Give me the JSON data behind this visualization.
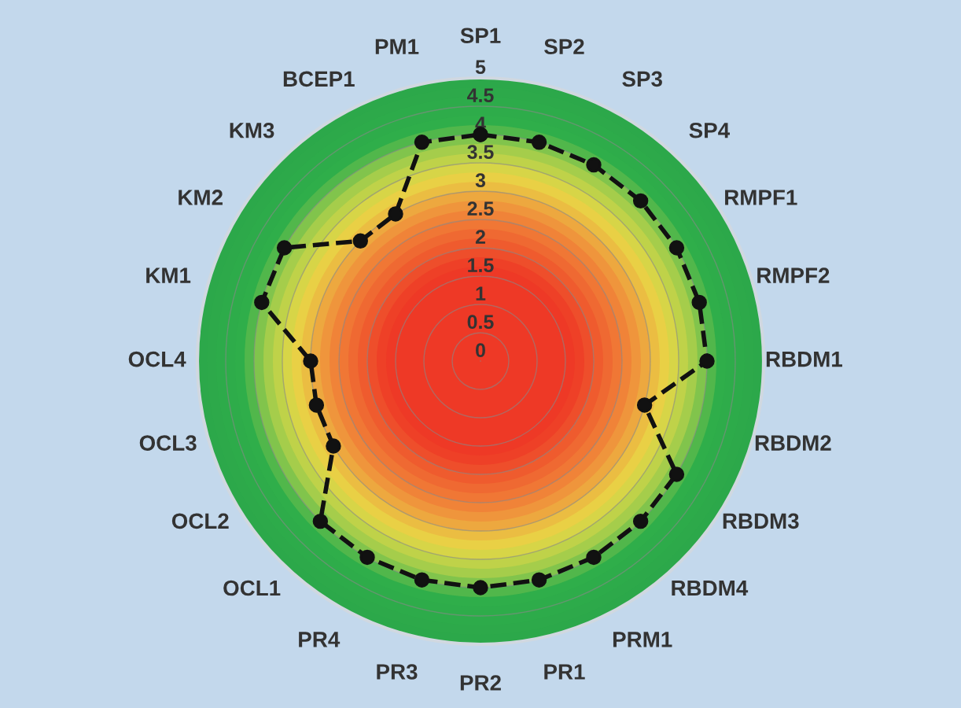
{
  "chart_data": {
    "type": "radar",
    "categories": [
      "SP1",
      "SP2",
      "SP3",
      "SP4",
      "RMPF1",
      "RMPF2",
      "RBDM1",
      "RBDM2",
      "RBDM3",
      "RBDM4",
      "PRM1",
      "PR1",
      "PR2",
      "PR3",
      "PR4",
      "OCL1",
      "OCL2",
      "OCL3",
      "OCL4",
      "KM1",
      "KM2",
      "KM3",
      "BCEP1",
      "PM1"
    ],
    "series": [
      {
        "color": "#111111",
        "values": [
          4,
          4,
          4,
          4,
          4,
          4,
          4,
          3,
          4,
          4,
          4,
          4,
          4,
          4,
          4,
          4,
          3,
          3,
          3,
          4,
          4,
          3,
          3,
          4
        ]
      }
    ],
    "ylim": [
      0,
      5
    ],
    "yticks": [
      0,
      0.5,
      1,
      1.5,
      2,
      2.5,
      3,
      3.5,
      4,
      4.5,
      5
    ],
    "grid": true,
    "marker": "circle",
    "line_style": "dashed"
  }
}
